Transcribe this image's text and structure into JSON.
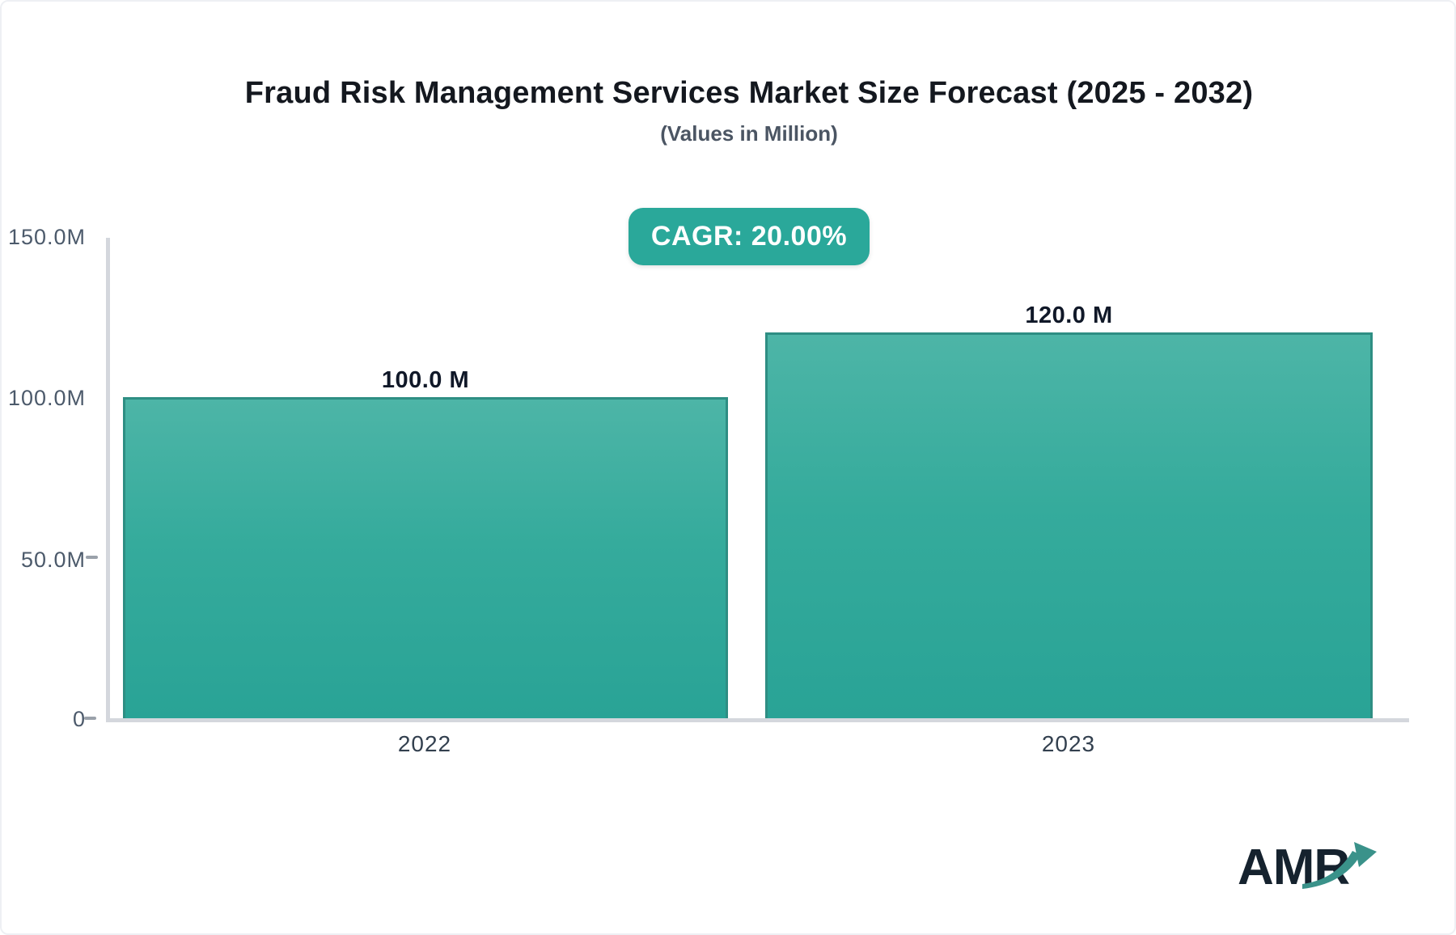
{
  "chart_data": {
    "type": "bar",
    "title": "Fraud Risk Management Services Market Size Forecast (2025 - 2032)",
    "subtitle": "(Values in Million)",
    "categories": [
      "2022",
      "2023"
    ],
    "values": [
      100.0,
      120.0
    ],
    "value_labels": [
      "100.0 M",
      "120.0 M"
    ],
    "unit": "Million",
    "ylim": [
      0,
      150
    ],
    "ytick_labels": [
      "150.0M",
      "100.0M",
      "50.0M",
      "0"
    ],
    "grid": false,
    "legend": "none",
    "annotations": [
      "CAGR: 20.00%"
    ],
    "bar_fill_top": "#4db5a7",
    "bar_fill_bottom": "#29a396",
    "bar_border": "#2e8e83"
  },
  "header": {
    "title": "Fraud Risk Management Services Market Size Forecast (2025 - 2032)",
    "subtitle": "(Values in Million)"
  },
  "badge": {
    "label": "CAGR: 20.00%",
    "background": "#2aa89a",
    "text_color": "#ffffff"
  },
  "yaxis": {
    "labels": [
      "150.0M",
      "100.0M",
      "50.0M",
      "0"
    ]
  },
  "xaxis": {
    "labels": [
      "2022",
      "2023"
    ]
  },
  "bars": [
    {
      "category": "2022",
      "value": 100.0,
      "value_label": "100.0 M"
    },
    {
      "category": "2023",
      "value": 120.0,
      "value_label": "120.0 M"
    }
  ],
  "logo": {
    "text": "AMR",
    "arrow_icon": "trend-up-arrow",
    "text_color": "#15222e",
    "arrow_color": "#3a928a"
  }
}
